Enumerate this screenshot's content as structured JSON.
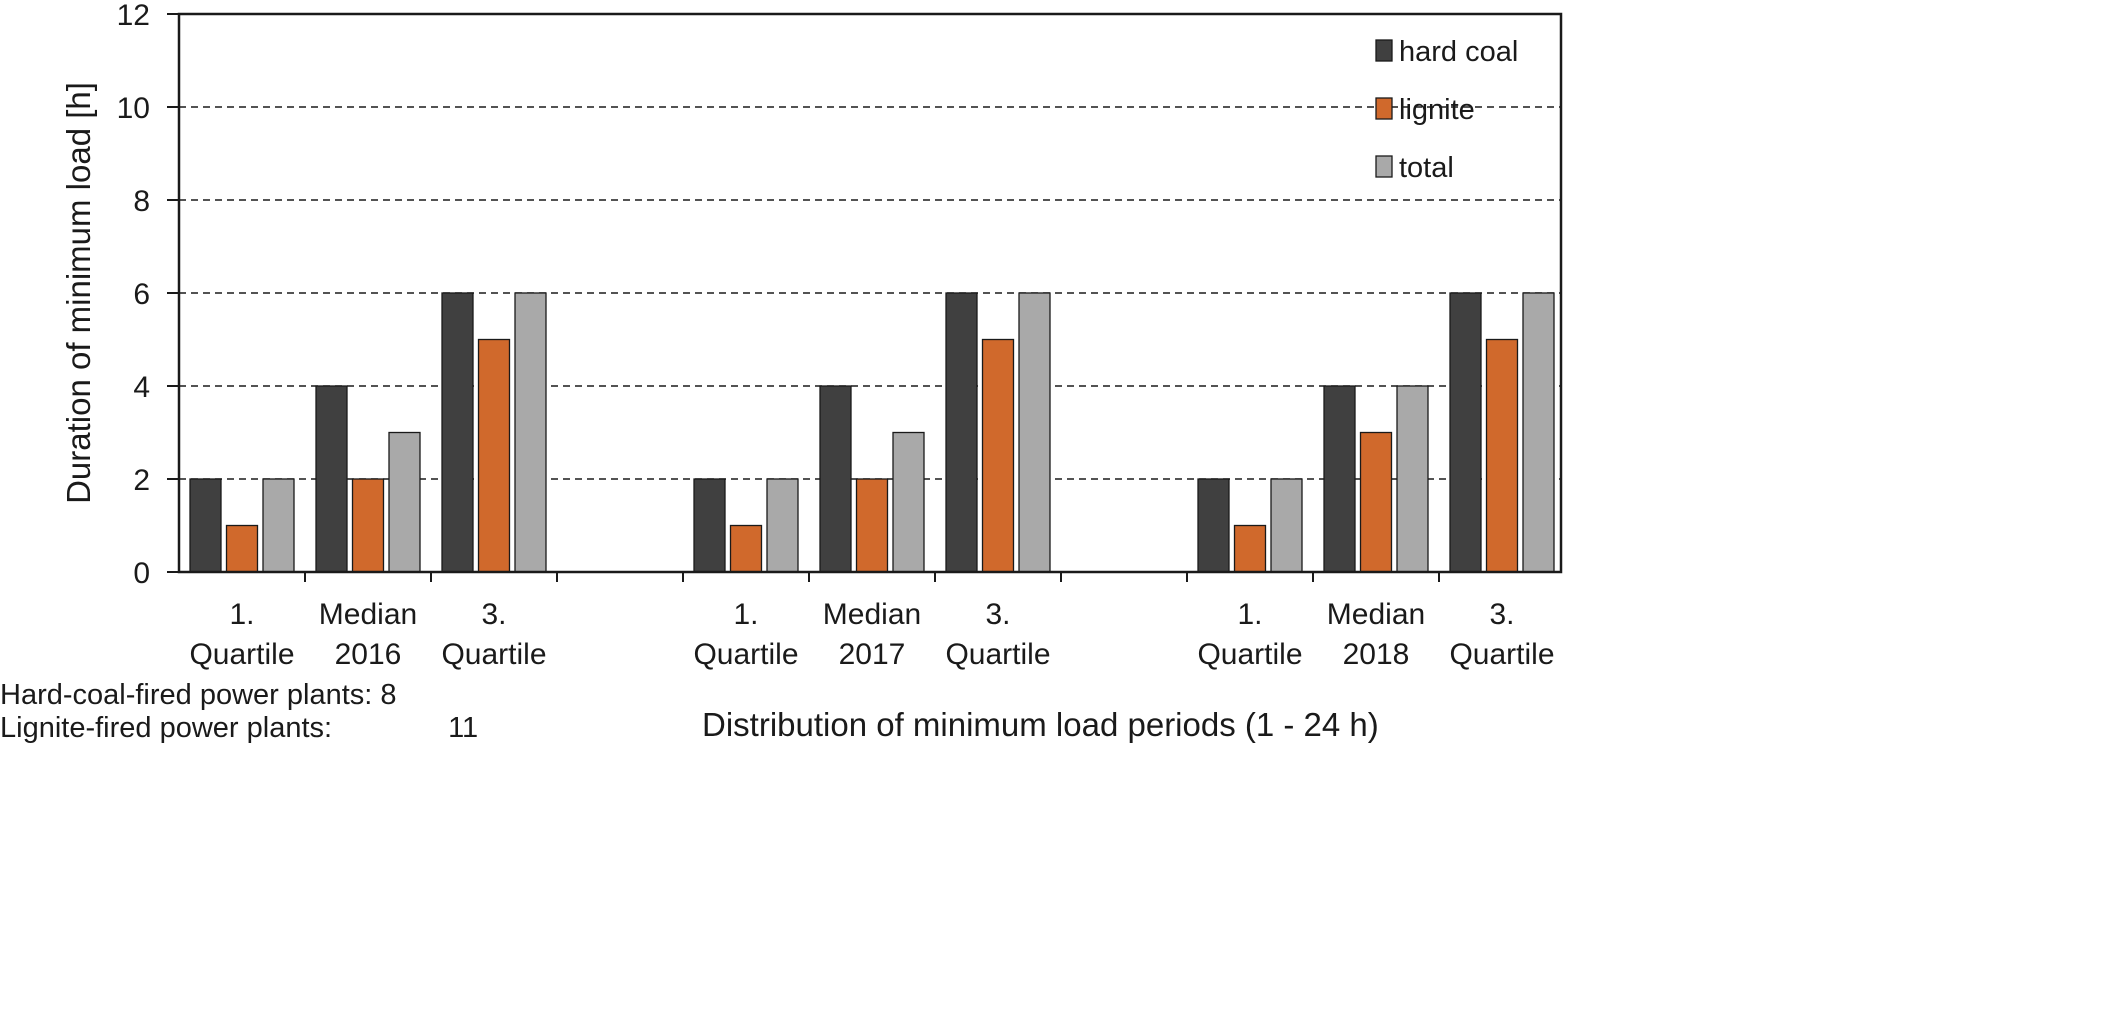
{
  "chart_data": {
    "type": "bar",
    "ylabel": "Duration of minimum load [h]",
    "xlabel": "Distribution of minimum load periods (1 - 24 h)",
    "ylim": [
      0,
      12
    ],
    "yticks": [
      0,
      2,
      4,
      6,
      8,
      10,
      12
    ],
    "grid": "dashed horizontal",
    "legend_position": "top-right",
    "groups": [
      {
        "year": "2016",
        "categories": [
          {
            "line1": "1.",
            "line2": "Quartile"
          },
          {
            "line1": "Median",
            "line2": "2016"
          },
          {
            "line1": "3.",
            "line2": "Quartile"
          }
        ]
      },
      {
        "year": "2017",
        "categories": [
          {
            "line1": "1.",
            "line2": "Quartile"
          },
          {
            "line1": "Median",
            "line2": "2017"
          },
          {
            "line1": "3.",
            "line2": "Quartile"
          }
        ]
      },
      {
        "year": "2018",
        "categories": [
          {
            "line1": "1.",
            "line2": "Quartile"
          },
          {
            "line1": "Median",
            "line2": "2018"
          },
          {
            "line1": "3.",
            "line2": "Quartile"
          }
        ]
      }
    ],
    "series": [
      {
        "name": "hard coal",
        "color": "#404040",
        "values": [
          2,
          4,
          6,
          2,
          4,
          6,
          2,
          4,
          6
        ]
      },
      {
        "name": "lignite",
        "color": "#d0692c",
        "values": [
          1,
          2,
          5,
          1,
          2,
          5,
          1,
          3,
          5
        ]
      },
      {
        "name": "total",
        "color": "#a9a9a9",
        "values": [
          2,
          3,
          6,
          2,
          3,
          6,
          2,
          4,
          6
        ]
      }
    ]
  },
  "notes": {
    "hard_coal_label": "Hard-coal-fired power plants:",
    "hard_coal_count": "8",
    "lignite_label": "Lignite-fired power plants:",
    "lignite_count": "11"
  }
}
